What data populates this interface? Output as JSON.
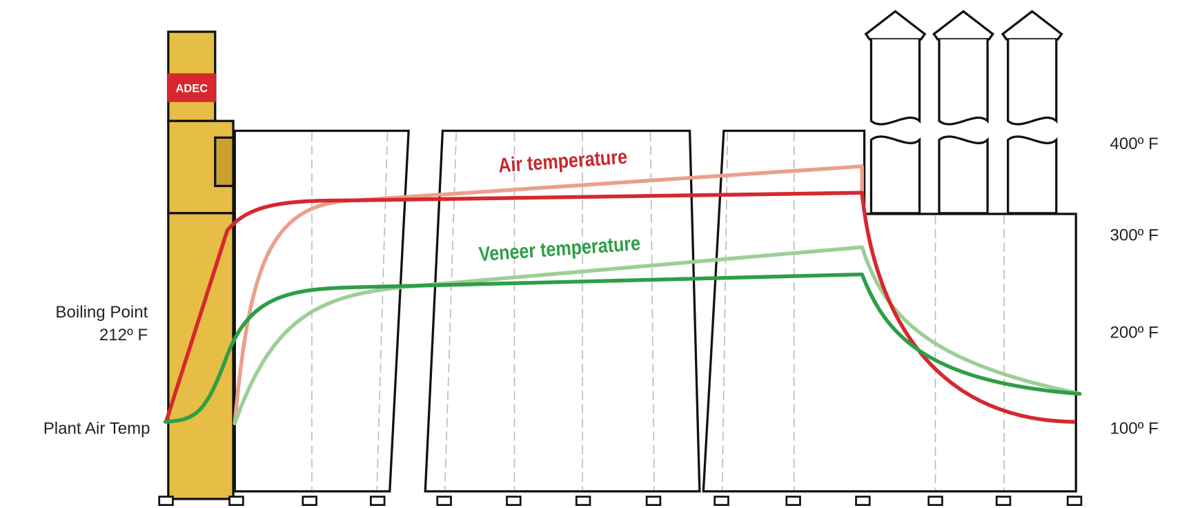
{
  "header": {
    "badge": "ADEC"
  },
  "curves": {
    "air": "Air temperature",
    "veneer": "Veneer temperature"
  },
  "left_labels": {
    "boiling_point": "Boiling Point",
    "boiling_value": "212º F",
    "plant_air": "Plant Air Temp"
  },
  "right_axis": {
    "labels": [
      "400º F",
      "300º F",
      "200º F",
      "100º F"
    ]
  }
}
